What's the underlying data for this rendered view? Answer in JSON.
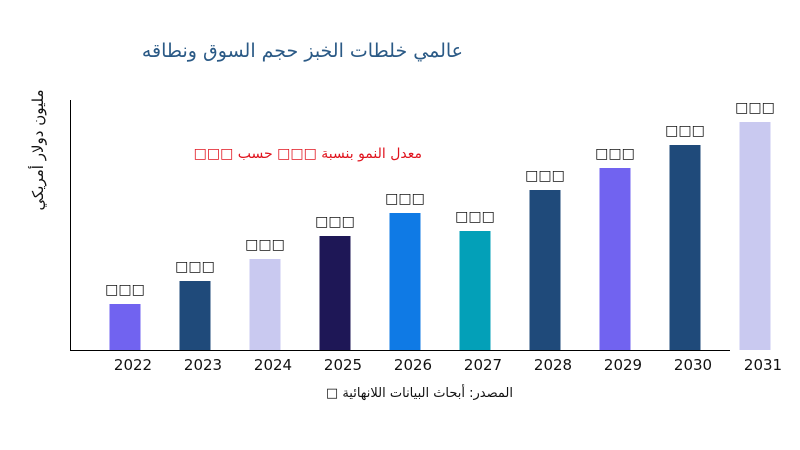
{
  "chart_data": {
    "type": "bar",
    "title": "عالمي خلطات الخبز حجم السوق ونطاقه",
    "ylabel": "مليون دولار أمريكي",
    "annotation": "معدل النمو بنسبة □□□ حسب □□□",
    "source": "المصدر: أبحاث البيانات اللانهائية □",
    "categories": [
      "2022",
      "2023",
      "2024",
      "2025",
      "2026",
      "2027",
      "2028",
      "2029",
      "2030",
      "2031"
    ],
    "values": [
      46,
      69,
      91,
      114,
      137,
      119,
      160,
      182,
      205,
      228
    ],
    "data_labels": [
      "□□□",
      "□□□",
      "□□□",
      "□□□",
      "□□□",
      "□□□",
      "□□□",
      "□□□",
      "□□□",
      "□□□"
    ],
    "colors": [
      "#7163f0",
      "#1f4a7a",
      "#c9c9f0",
      "#1e1756",
      "#0f7ae5",
      "#03a0b8",
      "#1f4a7a",
      "#7163f0",
      "#1f4a7a",
      "#c9c9f0"
    ],
    "ylim": [
      0,
      250
    ],
    "grid": false,
    "legend": "none"
  }
}
